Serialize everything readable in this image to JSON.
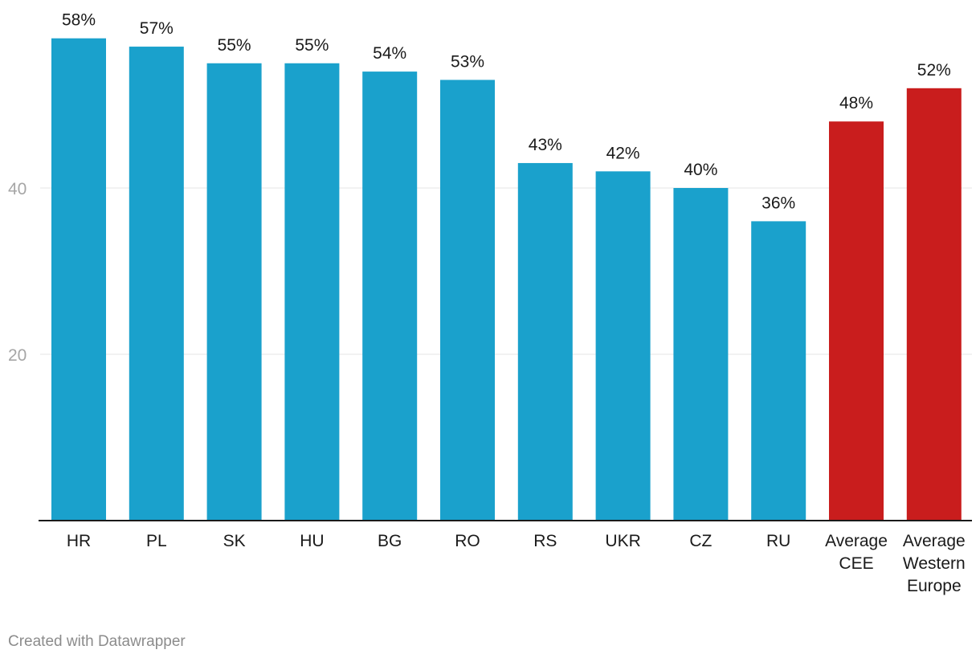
{
  "chart_data": {
    "type": "bar",
    "categories": [
      [
        "HR"
      ],
      [
        "PL"
      ],
      [
        "SK"
      ],
      [
        "HU"
      ],
      [
        "BG"
      ],
      [
        "RO"
      ],
      [
        "RS"
      ],
      [
        "UKR"
      ],
      [
        "CZ"
      ],
      [
        "RU"
      ],
      [
        "Average",
        "CEE"
      ],
      [
        "Average",
        "Western",
        "Europe"
      ]
    ],
    "values": [
      58,
      57,
      55,
      55,
      54,
      53,
      43,
      42,
      40,
      36,
      48,
      52
    ],
    "value_labels": [
      "58%",
      "57%",
      "55%",
      "55%",
      "54%",
      "53%",
      "43%",
      "42%",
      "40%",
      "36%",
      "48%",
      "52%"
    ],
    "highlight": [
      false,
      false,
      false,
      false,
      false,
      false,
      false,
      false,
      false,
      false,
      true,
      true
    ],
    "ylim": [
      0,
      60
    ],
    "y_ticks": [
      20,
      40
    ],
    "grid": true,
    "title": "",
    "xlabel": "",
    "ylabel": "",
    "colors": {
      "default": "#1aa1cc",
      "highlight": "#c91d1d"
    }
  },
  "footer": {
    "credit": "Created with Datawrapper"
  }
}
